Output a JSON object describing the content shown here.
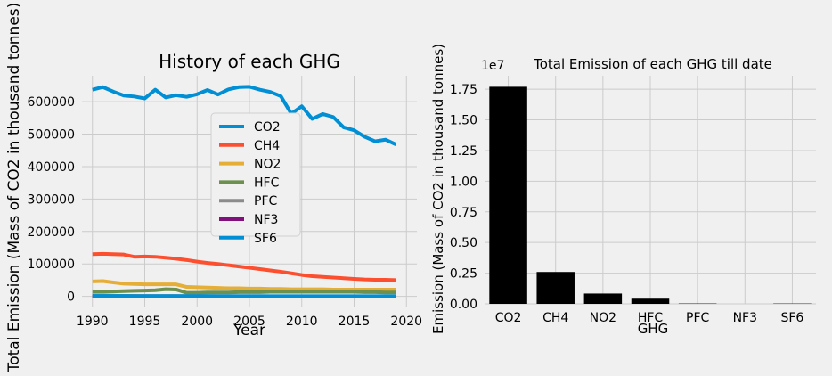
{
  "colors": {
    "background": "#f0f0f0",
    "grid": "#cbcbcb",
    "axis_text": "#000000",
    "bar": "#000000",
    "series": [
      "#008fd5",
      "#fc4f30",
      "#e5ae38",
      "#6d904f",
      "#8b8b8b",
      "#810f7c",
      "#008fd5"
    ]
  },
  "chart_data": [
    {
      "type": "line",
      "title": "History of each GHG",
      "xlabel": "Year",
      "ylabel": "Total Emission (Mass of CO2 in thousand tonnes)",
      "x": [
        1990,
        1991,
        1992,
        1993,
        1994,
        1995,
        1996,
        1997,
        1998,
        1999,
        2000,
        2001,
        2002,
        2003,
        2004,
        2005,
        2006,
        2007,
        2008,
        2009,
        2010,
        2011,
        2012,
        2013,
        2014,
        2015,
        2016,
        2017,
        2018,
        2019
      ],
      "xlim": [
        1989,
        2021
      ],
      "ylim": [
        -34000,
        680000
      ],
      "xticks": [
        1990,
        1995,
        2000,
        2005,
        2010,
        2015,
        2020
      ],
      "yticks": [
        0,
        100000,
        200000,
        300000,
        400000,
        500000,
        600000
      ],
      "grid": true,
      "legend_position": "center-right",
      "series": [
        {
          "name": "CO2",
          "values": [
            637000,
            645000,
            631000,
            619000,
            616000,
            610000,
            637000,
            613000,
            620000,
            615000,
            623000,
            636000,
            622000,
            638000,
            645000,
            646000,
            637000,
            630000,
            617000,
            563000,
            586000,
            547000,
            562000,
            553000,
            521000,
            512000,
            492000,
            478000,
            483000,
            468000
          ]
        },
        {
          "name": "CH4",
          "values": [
            130000,
            131000,
            130000,
            129000,
            122000,
            123000,
            122000,
            119000,
            116000,
            112000,
            107000,
            103000,
            100000,
            96000,
            92000,
            88000,
            84000,
            80000,
            76000,
            71000,
            66000,
            62000,
            60000,
            58000,
            56000,
            54000,
            52000,
            51000,
            51000,
            50000
          ]
        },
        {
          "name": "NO2",
          "values": [
            46000,
            47000,
            43000,
            39000,
            38000,
            37000,
            37000,
            37000,
            37000,
            29000,
            28000,
            27000,
            26000,
            25000,
            25000,
            24000,
            24000,
            23000,
            23000,
            22000,
            22000,
            22000,
            22000,
            21000,
            21000,
            21000,
            21000,
            21000,
            21000,
            21000
          ]
        },
        {
          "name": "HFC",
          "values": [
            14000,
            14000,
            15000,
            16000,
            17000,
            18000,
            19000,
            22000,
            21000,
            11000,
            11000,
            12000,
            12000,
            12000,
            13000,
            13000,
            13000,
            14000,
            14000,
            14000,
            14000,
            14000,
            14000,
            14000,
            14000,
            14000,
            13000,
            13000,
            12000,
            12000
          ]
        },
        {
          "name": "PFC",
          "values": [
            2000,
            2000,
            2000,
            1800,
            1600,
            1500,
            1400,
            1300,
            1200,
            1000,
            900,
            800,
            700,
            600,
            500,
            500,
            500,
            400,
            400,
            300,
            300,
            300,
            300,
            300,
            300,
            300,
            300,
            300,
            300,
            300
          ]
        },
        {
          "name": "NF3",
          "values": [
            0,
            0,
            0,
            0,
            0,
            0,
            0,
            0,
            0,
            0,
            0,
            0,
            0,
            0,
            0,
            0,
            0,
            0,
            0,
            0,
            0,
            0,
            0,
            0,
            0,
            0,
            0,
            0,
            0,
            0
          ]
        },
        {
          "name": "SF6",
          "values": [
            1200,
            1200,
            1200,
            1200,
            1100,
            1100,
            1100,
            1000,
            1000,
            900,
            900,
            900,
            800,
            800,
            800,
            800,
            700,
            700,
            700,
            600,
            600,
            600,
            600,
            600,
            600,
            600,
            600,
            600,
            600,
            600
          ]
        }
      ]
    },
    {
      "type": "bar",
      "title": "Total Emission of each GHG till date",
      "xlabel": "GHG",
      "ylabel": "Emission (Mass of CO2 in thousand tonnes)",
      "offset_label": "1e7",
      "categories": [
        "CO2",
        "CH4",
        "NO2",
        "HFC",
        "PFC",
        "NF3",
        "SF6"
      ],
      "values": [
        17700000,
        2600000,
        840000,
        420000,
        28000,
        0,
        25000
      ],
      "ylim": [
        0,
        18600000
      ],
      "yticks": [
        0,
        2500000,
        5000000,
        7500000,
        10000000,
        12500000,
        15000000,
        17500000
      ],
      "ytick_labels": [
        "0.00",
        "0.25",
        "0.50",
        "0.75",
        "1.00",
        "1.25",
        "1.50",
        "1.75"
      ],
      "grid": true
    }
  ]
}
